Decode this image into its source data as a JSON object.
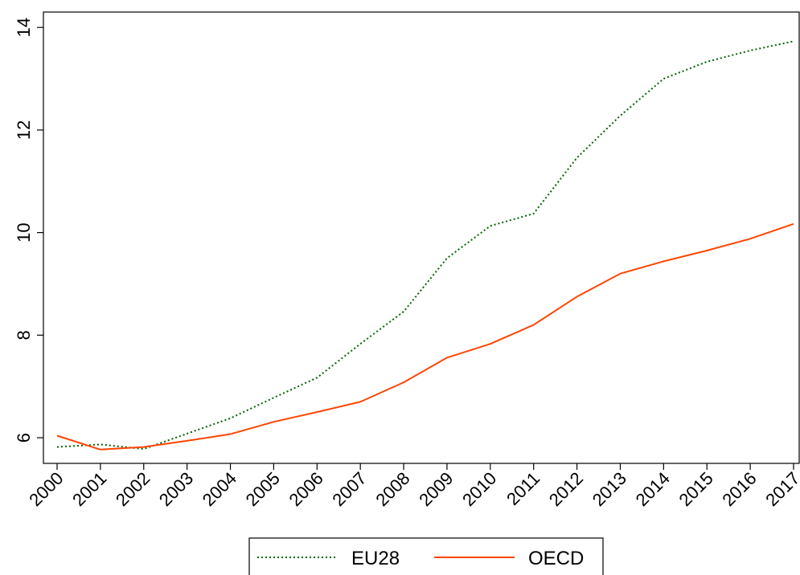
{
  "chart_data": {
    "type": "line",
    "x": [
      "2000",
      "2001",
      "2002",
      "2003",
      "2004",
      "2005",
      "2006",
      "2007",
      "2008",
      "2009",
      "2010",
      "2011",
      "2012",
      "2013",
      "2014",
      "2015",
      "2016",
      "2017"
    ],
    "series": [
      {
        "name": "EU28",
        "color": "#006400",
        "style": "dotted",
        "values": [
          5.82,
          5.87,
          5.78,
          6.08,
          6.38,
          6.78,
          7.17,
          7.83,
          8.46,
          9.5,
          10.13,
          10.37,
          11.46,
          12.28,
          13.0,
          13.33,
          13.55,
          13.73
        ]
      },
      {
        "name": "OECD",
        "color": "#ff4500",
        "style": "solid",
        "values": [
          6.04,
          5.77,
          5.82,
          5.94,
          6.07,
          6.31,
          6.5,
          6.7,
          7.08,
          7.56,
          7.83,
          8.2,
          8.75,
          9.2,
          9.44,
          9.65,
          9.88,
          10.17
        ]
      }
    ],
    "ylim": [
      5.5,
      14.3
    ],
    "yticks": [
      "6",
      "8",
      "10",
      "12",
      "14"
    ],
    "title": "",
    "xlabel": "",
    "ylabel": "",
    "grid": false,
    "legend_position": "bottom"
  }
}
